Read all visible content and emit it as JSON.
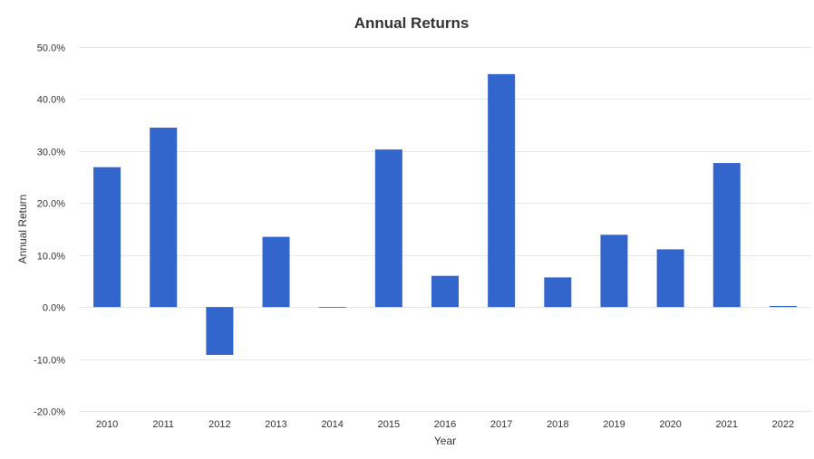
{
  "chart_data": {
    "type": "bar",
    "title": "Annual Returns",
    "xlabel": "Year",
    "ylabel": "Annual Return",
    "categories": [
      "2010",
      "2011",
      "2012",
      "2013",
      "2014",
      "2015",
      "2016",
      "2017",
      "2018",
      "2019",
      "2020",
      "2021",
      "2022"
    ],
    "values": [
      26.9,
      34.5,
      -9.2,
      13.5,
      0.0,
      30.3,
      6.0,
      44.8,
      5.7,
      13.9,
      11.1,
      27.7,
      0.2
    ],
    "ylim": [
      -20,
      50
    ],
    "yticks": [
      -20,
      -10,
      0,
      10,
      20,
      30,
      40,
      50
    ],
    "ytick_labels": [
      "-20.0%",
      "-10.0%",
      "0.0%",
      "10.0%",
      "20.0%",
      "30.0%",
      "40.0%",
      "50.0%"
    ],
    "grid": true,
    "legend": "none",
    "bar_color": "#3366cc"
  }
}
